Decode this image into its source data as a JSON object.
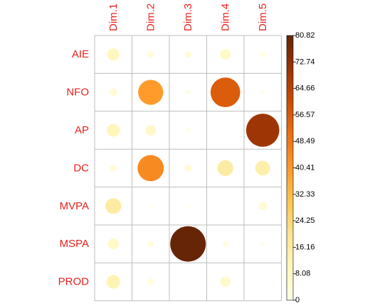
{
  "chart_data": {
    "type": "heatmap",
    "style": "correlation-plot circles, size and color encode value",
    "title": "",
    "rows": [
      "AIE",
      "NFO",
      "AP",
      "DC",
      "MVPA",
      "MSPA",
      "PROD"
    ],
    "columns": [
      "Dim.1",
      "Dim.2",
      "Dim.3",
      "Dim.4",
      "Dim.5"
    ],
    "values": [
      [
        9.5,
        3.0,
        3.1,
        7.2,
        2.0
      ],
      [
        3.9,
        40.0,
        1.5,
        56.0,
        0.8
      ],
      [
        10.5,
        7.0,
        1.3,
        0.0,
        70.0
      ],
      [
        3.2,
        44.0,
        3.1,
        16.0,
        14.0
      ],
      [
        16.0,
        0.5,
        0.6,
        0.0,
        4.5
      ],
      [
        7.5,
        2.6,
        80.82,
        2.1,
        0.9
      ],
      [
        12.0,
        2.4,
        0.2,
        6.9,
        0.0
      ]
    ],
    "scale": {
      "min": 0,
      "max": 80.82,
      "ticks": [
        "80.82",
        "72.74",
        "64.66",
        "56.57",
        "48.49",
        "40.41",
        "32.33",
        "24.25",
        "16.16",
        "8.08",
        "0"
      ]
    },
    "colors": {
      "gradient": [
        "#FFFFE5",
        "#FFF7BC",
        "#FEE391",
        "#FEC44F",
        "#FE9929",
        "#EC7014",
        "#CC4C02",
        "#993404",
        "#662506"
      ],
      "label": "#e8221c",
      "grid": "#bdbdbd"
    },
    "legend_position": "right"
  }
}
